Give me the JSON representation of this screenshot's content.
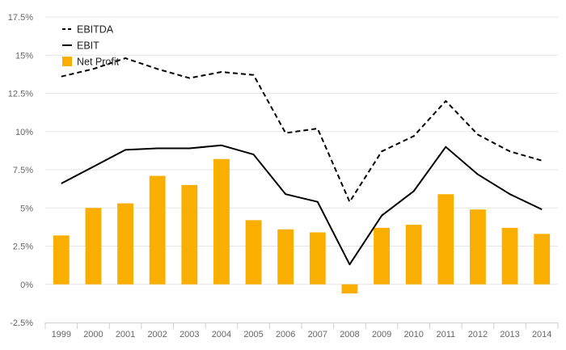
{
  "chart_data": {
    "type": "bar",
    "title": "",
    "xlabel": "",
    "ylabel": "",
    "categories": [
      "1999",
      "2000",
      "2001",
      "2002",
      "2003",
      "2004",
      "2005",
      "2006",
      "2007",
      "2008",
      "2009",
      "2010",
      "2011",
      "2012",
      "2013",
      "2014"
    ],
    "ylim": [
      -2.5,
      17.5
    ],
    "yticks": [
      -2.5,
      0,
      2.5,
      5,
      7.5,
      10,
      12.5,
      15,
      17.5
    ],
    "ytick_labels": [
      "-2.5%",
      "0%",
      "2.5%",
      "5%",
      "7.5%",
      "10%",
      "12.5%",
      "15%",
      "17.5%"
    ],
    "grid": true,
    "legend_position": "top-left",
    "series": [
      {
        "name": "EBITDA",
        "type": "line",
        "style": "dashed",
        "color": "#000000",
        "values": [
          13.6,
          14.1,
          14.8,
          14.1,
          13.5,
          13.9,
          13.7,
          9.9,
          10.2,
          5.4,
          8.7,
          9.7,
          12.0,
          9.8,
          8.7,
          8.1
        ]
      },
      {
        "name": "EBIT",
        "type": "line",
        "style": "solid",
        "color": "#000000",
        "values": [
          6.6,
          7.7,
          8.8,
          8.9,
          8.9,
          9.1,
          8.5,
          5.9,
          5.4,
          1.3,
          4.5,
          6.1,
          9.0,
          7.2,
          5.9,
          4.9
        ]
      },
      {
        "name": "Net Profit",
        "type": "bar",
        "color": "#F9AE00",
        "values": [
          3.2,
          5.0,
          5.3,
          7.1,
          6.5,
          8.2,
          4.2,
          3.6,
          3.4,
          -0.6,
          3.7,
          3.9,
          5.9,
          4.9,
          3.7,
          3.3
        ]
      }
    ]
  }
}
